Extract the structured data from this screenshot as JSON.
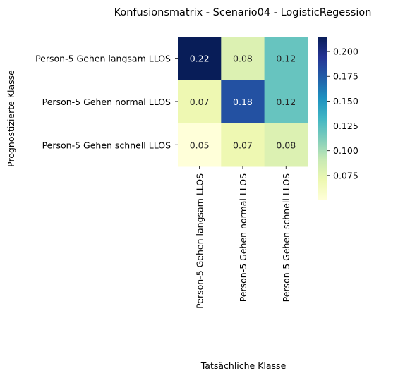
{
  "chart_data": {
    "type": "heatmap",
    "title": "Konfusionsmatrix - Scenario04 - LogisticRegession",
    "xlabel": "Tatsächliche Klasse",
    "ylabel": "Prognostizierte Klasse",
    "x_categories": [
      "Person-5 Gehen langsam LLOS",
      "Person-5 Gehen normal LLOS",
      "Person-5 Gehen schnell LLOS"
    ],
    "y_categories": [
      "Person-5 Gehen langsam LLOS",
      "Person-5 Gehen normal LLOS",
      "Person-5 Gehen schnell LLOS"
    ],
    "values": [
      [
        0.22,
        0.08,
        0.12
      ],
      [
        0.07,
        0.18,
        0.12
      ],
      [
        0.05,
        0.07,
        0.08
      ]
    ],
    "colorbar": {
      "colormap": "YlGnBu",
      "vmin": 0.05,
      "vmax": 0.215,
      "ticks": [
        0.075,
        0.1,
        0.125,
        0.15,
        0.175,
        0.2
      ],
      "tick_labels": [
        "0.075",
        "0.100",
        "0.125",
        "0.150",
        "0.175",
        "0.200"
      ]
    },
    "grid": false,
    "legend": "colorbar-right"
  }
}
